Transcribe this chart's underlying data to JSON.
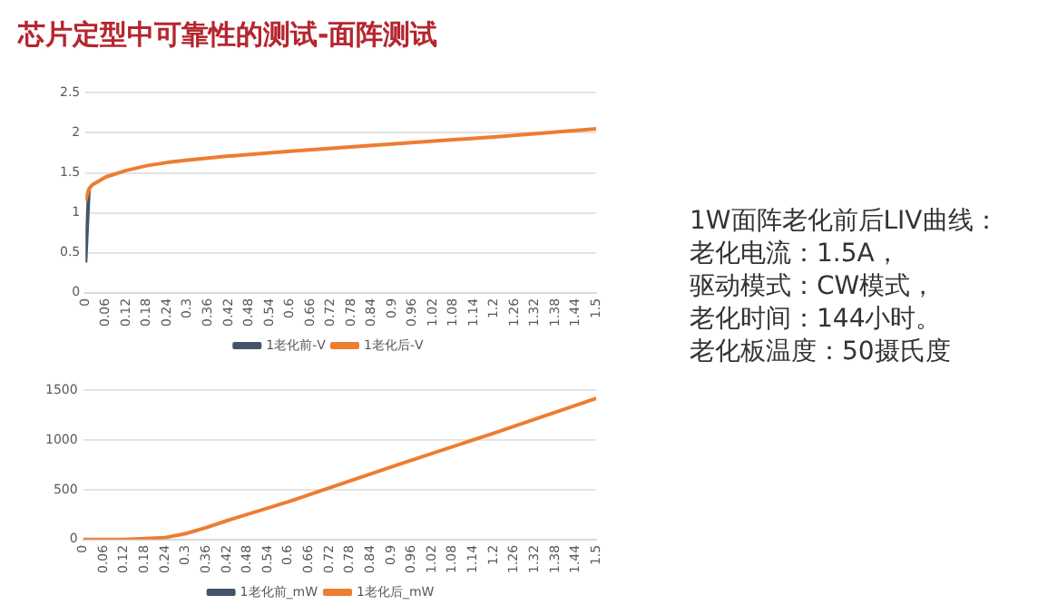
{
  "chart_data": [
    {
      "type": "line",
      "title": "芯片定型中可靠性的测试-面阵测试",
      "xlim": [
        0,
        1.5
      ],
      "xticks": [
        0,
        0.06,
        0.12,
        0.18,
        0.24,
        0.3,
        0.36,
        0.42,
        0.48,
        0.54,
        0.6,
        0.66,
        0.72,
        0.78,
        0.84,
        0.9,
        0.96,
        1.02,
        1.08,
        1.14,
        1.2,
        1.26,
        1.32,
        1.38,
        1.44,
        1.5
      ],
      "ylim": [
        0,
        2.5
      ],
      "yticks": [
        0,
        0.5,
        1,
        1.5,
        2,
        2.5
      ],
      "grid": "y",
      "legend": "bottom",
      "marker": "none",
      "line_style": "solid",
      "series": [
        {
          "name": "1老化前-V",
          "color": "#44546a",
          "x": [
            0,
            0.01
          ],
          "values": [
            0.38,
            1.3
          ]
        },
        {
          "name": "1老化后-V",
          "color": "#ed7d31",
          "x": [
            0,
            0.01,
            0.02,
            0.06,
            0.12,
            0.18,
            0.24,
            0.3,
            0.42,
            0.6,
            0.9,
            1.2,
            1.5
          ],
          "values": [
            1.15,
            1.3,
            1.35,
            1.45,
            1.53,
            1.59,
            1.63,
            1.66,
            1.71,
            1.77,
            1.86,
            1.95,
            2.05
          ]
        }
      ]
    },
    {
      "type": "line",
      "xlim": [
        0,
        1.5
      ],
      "xticks": [
        0,
        0.06,
        0.12,
        0.18,
        0.24,
        0.3,
        0.36,
        0.42,
        0.48,
        0.54,
        0.6,
        0.66,
        0.72,
        0.78,
        0.84,
        0.9,
        0.96,
        1.02,
        1.08,
        1.14,
        1.2,
        1.26,
        1.32,
        1.38,
        1.44,
        1.5
      ],
      "ylim": [
        0,
        1500
      ],
      "yticks": [
        0,
        500,
        1000,
        1500
      ],
      "grid": "y",
      "legend": "bottom",
      "marker": "none",
      "line_style": "solid",
      "series": [
        {
          "name": "1老化前_mW",
          "color": "#44546a"
        },
        {
          "name": "1老化后_mW",
          "color": "#ed7d31",
          "x": [
            0,
            0.12,
            0.18,
            0.24,
            0.3,
            0.36,
            0.42,
            0.6,
            0.9,
            1.2,
            1.5
          ],
          "values": [
            0,
            0,
            10,
            20,
            60,
            120,
            190,
            380,
            730,
            1070,
            1420
          ]
        }
      ]
    },
    {
      "type": "other",
      "annotations": [
        "1W面阵老化前后LIV曲线：",
        "老化电流：1.5A，",
        "驱动模式：CW模式，",
        "老化时间：144小时。",
        "老化板温度：50摄氏度"
      ]
    }
  ]
}
